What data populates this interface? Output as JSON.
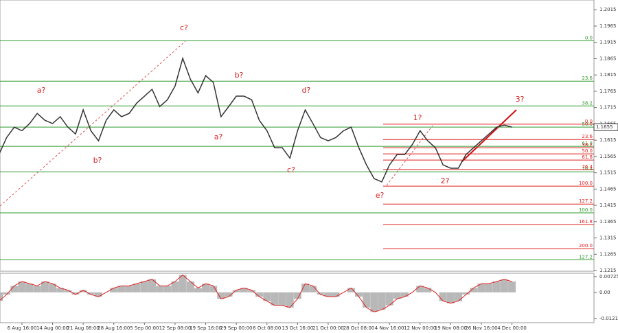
{
  "chart_data": {
    "type": "line",
    "color": "#333333",
    "categories": [
      null,
      null,
      null,
      "6 Aug 16:00",
      null,
      null,
      null,
      "14 Aug 00:00",
      null,
      null,
      null,
      "21 Aug 08:00",
      null,
      null,
      null,
      "28 Aug 16:00",
      null,
      null,
      null,
      "5 Sep 00:00",
      null,
      null,
      null,
      "12 Sep 08:00",
      null,
      null,
      null,
      "19 Sep 16:00",
      null,
      null,
      null,
      "29 Sep 00:00",
      null,
      null,
      null,
      "6 Oct 08:00",
      null,
      null,
      null,
      "13 Oct 16:00",
      null,
      null,
      null,
      "21 Oct 00:00",
      null,
      null,
      null,
      "28 Oct 08:00",
      null,
      null,
      null,
      "4 Nov 16:00",
      null,
      null,
      null,
      "12 Nov 00:00",
      null,
      null,
      null,
      "19 Nov 08:00",
      null,
      null,
      null,
      "26 Nov 16:00",
      null,
      null,
      null,
      "4 Dec 00:00"
    ],
    "values": [
      1.1571,
      1.1623,
      1.1655,
      1.1644,
      1.1666,
      1.1697,
      1.1676,
      1.1666,
      1.1687,
      1.1655,
      1.1634,
      1.1708,
      1.1644,
      1.1613,
      1.1676,
      1.1708,
      1.1687,
      1.1697,
      1.1729,
      1.175,
      1.1771,
      1.1718,
      1.1739,
      1.1781,
      1.1866,
      1.1802,
      1.176,
      1.1813,
      1.1792,
      1.1687,
      1.1718,
      1.175,
      1.175,
      1.1739,
      1.1676,
      1.1644,
      1.1592,
      1.1592,
      1.156,
      1.1644,
      1.1708,
      1.1666,
      1.1623,
      1.1613,
      1.1623,
      1.1644,
      1.1655,
      1.1592,
      1.1539,
      1.1497,
      1.1487,
      1.1539,
      1.1571,
      1.1571,
      1.1602,
      1.1644,
      1.1613,
      1.1592,
      1.1539,
      1.1529,
      1.1529,
      1.1571,
      1.1592,
      1.1613,
      1.1634,
      1.1655,
      1.1661,
      1.1655
    ],
    "ylim": [
      1.1213,
      1.2045
    ],
    "yticks": [
      1.2015,
      1.1965,
      1.1915,
      1.1865,
      1.1815,
      1.1765,
      1.1715,
      1.1665,
      1.1615,
      1.1565,
      1.1515,
      1.1465,
      1.1415,
      1.1365,
      1.1315,
      1.1265,
      1.1215
    ],
    "current_price": 1.1655,
    "fib_long": {
      "color": "#2e9a2e",
      "levels": [
        {
          "label": "0.0",
          "value": 1.192
        },
        {
          "label": "23.6",
          "value": 1.1796
        },
        {
          "label": "38.2",
          "value": 1.172
        },
        {
          "label": "50.0",
          "value": 1.1655
        },
        {
          "label": "61.8",
          "value": 1.1596
        },
        {
          "label": "76.4",
          "value": 1.1518
        },
        {
          "label": "100.0",
          "value": 1.1392
        },
        {
          "label": "127.2",
          "value": 1.1248
        }
      ]
    },
    "fib_short": {
      "color": "#e02020",
      "levels": [
        {
          "label": "0.0",
          "value": 1.1664
        },
        {
          "label": "23.6",
          "value": 1.1617
        },
        {
          "label": "38.2",
          "value": 1.1592
        },
        {
          "label": "50.0",
          "value": 1.1573
        },
        {
          "label": "61.8",
          "value": 1.1554
        },
        {
          "label": "76.4",
          "value": 1.1525
        },
        {
          "label": "100.0",
          "value": 1.1474
        },
        {
          "label": "127.2",
          "value": 1.1419
        },
        {
          "label": "161.8",
          "value": 1.1356
        },
        {
          "label": "200.0",
          "value": 1.1282
        }
      ]
    },
    "wave_labels": [
      "c?",
      "a?",
      "b?",
      "b?",
      "a?",
      "d?",
      "c?",
      "e?",
      "1?",
      "2?",
      "3?"
    ],
    "oscillator": {
      "color": "#e02020",
      "bar_color": "#b8b8b8",
      "ylim": [
        -0.014,
        0.0088
      ],
      "yticks": [
        0.00725,
        {
          "value": 0,
          "label": "0.00"
        },
        -0.0121
      ],
      "values": [
        -0.004,
        -0.001,
        0.003,
        0.005,
        0.004,
        0.003,
        0.005,
        0.004,
        0.002,
        0.001,
        -0.001,
        0.001,
        -0.001,
        -0.002,
        0.0,
        0.002,
        0.003,
        0.003,
        0.004,
        0.005,
        0.006,
        0.003,
        0.003,
        0.005,
        0.008,
        0.005,
        0.002,
        0.004,
        0.003,
        -0.003,
        -0.002,
        0.001,
        0.002,
        0.001,
        -0.002,
        -0.004,
        -0.006,
        -0.006,
        -0.007,
        -0.003,
        0.004,
        0.003,
        -0.001,
        -0.002,
        -0.002,
        0.0,
        0.002,
        -0.002,
        -0.007,
        -0.009,
        -0.008,
        -0.006,
        -0.003,
        -0.002,
        0.0,
        0.003,
        0.002,
        0.0,
        -0.004,
        -0.005,
        -0.004,
        -0.001,
        0.002,
        0.004,
        0.004,
        0.005,
        0.006,
        0.005
      ]
    }
  }
}
